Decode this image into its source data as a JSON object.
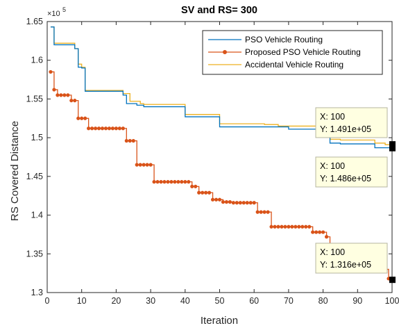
{
  "chart_data": {
    "type": "line",
    "title": "SV and RS= 300",
    "xlabel": "Iteration",
    "ylabel": "RS Covered Distance",
    "y_exponent_label": "×10",
    "y_exponent_value": "5",
    "xlim": [
      0,
      100
    ],
    "ylim": [
      1.3,
      1.65
    ],
    "xticks": [
      0,
      10,
      20,
      30,
      40,
      50,
      60,
      70,
      80,
      90,
      100
    ],
    "yticks": [
      1.3,
      1.35,
      1.4,
      1.45,
      1.5,
      1.55,
      1.6,
      1.65
    ],
    "ytick_labels": [
      "1.3",
      "1.35",
      "1.4",
      "1.45",
      "1.5",
      "1.55",
      "1.6",
      "1.65"
    ],
    "grid": false,
    "legend_position": "top-right",
    "colors": {
      "pso": "#0072bd",
      "proposed": "#d95319",
      "accidental": "#edb120"
    },
    "series": [
      {
        "name": "PSO Vehicle Routing",
        "steps": [
          [
            1,
            1.643
          ],
          [
            2,
            1.62
          ],
          [
            8,
            1.615
          ],
          [
            9,
            1.591
          ],
          [
            10,
            1.59
          ],
          [
            11,
            1.56
          ],
          [
            22,
            1.555
          ],
          [
            23,
            1.544
          ],
          [
            26,
            1.542
          ],
          [
            28,
            1.54
          ],
          [
            40,
            1.527
          ],
          [
            50,
            1.514
          ],
          [
            70,
            1.511
          ],
          [
            80,
            1.51
          ],
          [
            82,
            1.493
          ],
          [
            85,
            1.492
          ],
          [
            95,
            1.487
          ],
          [
            98,
            1.487
          ],
          [
            100,
            1.486
          ]
        ]
      },
      {
        "name": "Proposed PSO Vehicle Routing",
        "markers": true,
        "steps": [
          [
            1,
            1.585
          ],
          [
            2,
            1.562
          ],
          [
            3,
            1.555
          ],
          [
            7,
            1.548
          ],
          [
            9,
            1.525
          ],
          [
            12,
            1.512
          ],
          [
            23,
            1.496
          ],
          [
            26,
            1.465
          ],
          [
            31,
            1.443
          ],
          [
            42,
            1.437
          ],
          [
            44,
            1.429
          ],
          [
            48,
            1.42
          ],
          [
            51,
            1.417
          ],
          [
            54,
            1.416
          ],
          [
            61,
            1.404
          ],
          [
            65,
            1.385
          ],
          [
            77,
            1.378
          ],
          [
            81,
            1.372
          ],
          [
            82,
            1.36
          ],
          [
            83,
            1.356
          ],
          [
            84,
            1.353
          ],
          [
            85,
            1.352
          ],
          [
            86,
            1.35
          ],
          [
            87,
            1.349
          ],
          [
            88,
            1.347
          ],
          [
            89,
            1.345
          ],
          [
            90,
            1.343
          ],
          [
            91,
            1.342
          ],
          [
            92,
            1.34
          ],
          [
            93,
            1.339
          ],
          [
            94,
            1.337
          ],
          [
            95,
            1.336
          ],
          [
            96,
            1.335
          ],
          [
            97,
            1.334
          ],
          [
            98,
            1.33
          ],
          [
            99,
            1.318
          ],
          [
            100,
            1.316
          ]
        ]
      },
      {
        "name": "Accidental Vehicle Routing",
        "steps": [
          [
            1,
            1.643
          ],
          [
            2,
            1.622
          ],
          [
            7,
            1.622
          ],
          [
            8,
            1.615
          ],
          [
            9,
            1.595
          ],
          [
            10,
            1.591
          ],
          [
            11,
            1.561
          ],
          [
            22,
            1.557
          ],
          [
            24,
            1.547
          ],
          [
            27,
            1.544
          ],
          [
            28,
            1.543
          ],
          [
            40,
            1.53
          ],
          [
            50,
            1.518
          ],
          [
            54,
            1.518
          ],
          [
            63,
            1.517
          ],
          [
            67,
            1.515
          ],
          [
            82,
            1.498
          ],
          [
            85,
            1.497
          ],
          [
            95,
            1.493
          ],
          [
            98,
            1.491
          ],
          [
            100,
            1.491
          ]
        ]
      }
    ],
    "datatips": [
      {
        "series": "Accidental Vehicle Routing",
        "x_text": "X: 100",
        "y_text": "Y: 1.491e+05",
        "x": 100,
        "y": 1.491
      },
      {
        "series": "PSO Vehicle Routing",
        "x_text": "X: 100",
        "y_text": "Y: 1.486e+05",
        "x": 100,
        "y": 1.486
      },
      {
        "series": "Proposed PSO Vehicle Routing",
        "x_text": "X: 100",
        "y_text": "Y: 1.316e+05",
        "x": 100,
        "y": 1.316
      }
    ]
  }
}
